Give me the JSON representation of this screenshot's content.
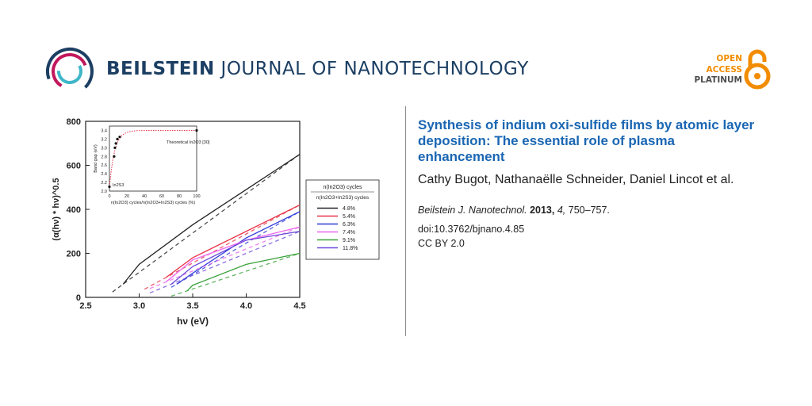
{
  "header": {
    "journal_bold": "BEILSTEIN",
    "journal_rest": " JOURNAL OF NANOTECHNOLOGY",
    "open_access": [
      "OPEN",
      "ACCESS",
      "PLATINUM"
    ]
  },
  "article": {
    "title": "Synthesis of indium oxi-sulfide films by atomic layer deposition: The essential role of plasma enhancement",
    "authors": "Cathy Bugot, Nathanaëlle Schneider, Daniel Lincot et al.",
    "journal_abbrev": "Beilstein J. Nanotechnol.",
    "year": "2013,",
    "volume": "4,",
    "pages": "750–757.",
    "doi": "doi:10.3762/bjnano.4.85",
    "license": "CC BY 2.0"
  },
  "colors": {
    "journal_blue": "#1c3f63",
    "title_blue": "#1a66b3",
    "oa_orange": "#f28c00"
  },
  "chart_data": [
    {
      "type": "line",
      "xlabel": "hν (eV)",
      "ylabel": "(α(hν) * hν)^0.5",
      "xlim": [
        2.5,
        4.5
      ],
      "ylim": [
        0,
        800
      ],
      "x_ticks": [
        "2.5",
        "3.0",
        "3.5",
        "4.0",
        "4.5"
      ],
      "y_ticks": [
        "0",
        "200",
        "400",
        "600",
        "800"
      ],
      "legend_title_top": "n(In2O3) cycles",
      "legend_title_bottom": "n(In2O3+In2S3) cycles",
      "legend_placement": "right",
      "series": [
        {
          "name": "4.8%",
          "color": "#222222",
          "x": [
            2.85,
            3.0,
            3.5,
            4.0,
            4.5
          ],
          "y": [
            60,
            150,
            330,
            490,
            650
          ],
          "fit_x": [
            2.75,
            4.5
          ]
        },
        {
          "name": "5.4%",
          "color": "#e8344a",
          "x": [
            3.25,
            3.5,
            4.0,
            4.5
          ],
          "y": [
            90,
            180,
            300,
            420
          ],
          "fit_x": [
            3.05,
            4.5
          ]
        },
        {
          "name": "6.3%",
          "color": "#2f3bd9",
          "x": [
            3.35,
            3.5,
            4.0,
            4.5
          ],
          "y": [
            60,
            110,
            270,
            390
          ],
          "fit_x": [
            3.3,
            4.5
          ]
        },
        {
          "name": "7.4%",
          "color": "#ee66ee",
          "x": [
            3.25,
            3.5,
            4.0,
            4.5
          ],
          "y": [
            70,
            170,
            260,
            320
          ],
          "fit_x": [
            3.1,
            4.5
          ]
        },
        {
          "name": "9.1%",
          "color": "#3aa23a",
          "x": [
            3.45,
            3.5,
            4.0,
            4.5
          ],
          "y": [
            30,
            55,
            150,
            200
          ],
          "fit_x": [
            3.3,
            4.5
          ]
        },
        {
          "name": "11.8%",
          "color": "#6a4ad9",
          "x": [
            3.3,
            3.5,
            4.0,
            4.5
          ],
          "y": [
            60,
            140,
            260,
            300
          ],
          "fit_x": [
            3.1,
            4.5
          ]
        }
      ]
    },
    {
      "type": "scatter",
      "xlabel": "n(In2O3) cycles/n(In2O3+In2S3) cycles (%)",
      "ylabel": "Band gap (eV)",
      "xlim": [
        0,
        100
      ],
      "ylim": [
        2.0,
        3.5
      ],
      "x_ticks": [
        "0",
        "20",
        "40",
        "60",
        "80",
        "100"
      ],
      "y_ticks": [
        "2.0",
        "2.2",
        "2.4",
        "2.6",
        "2.8",
        "3.0",
        "3.2",
        "3.4"
      ],
      "annotations": [
        "Theoretical In2O3 [30]",
        "In2S3"
      ],
      "points": [
        {
          "x": 0,
          "y": 2.1
        },
        {
          "x": 5.4,
          "y": 2.8
        },
        {
          "x": 6.3,
          "y": 3.0
        },
        {
          "x": 7.4,
          "y": 3.1
        },
        {
          "x": 9.1,
          "y": 3.2
        },
        {
          "x": 11.8,
          "y": 3.25
        },
        {
          "x": 100,
          "y": 3.4
        }
      ]
    }
  ]
}
